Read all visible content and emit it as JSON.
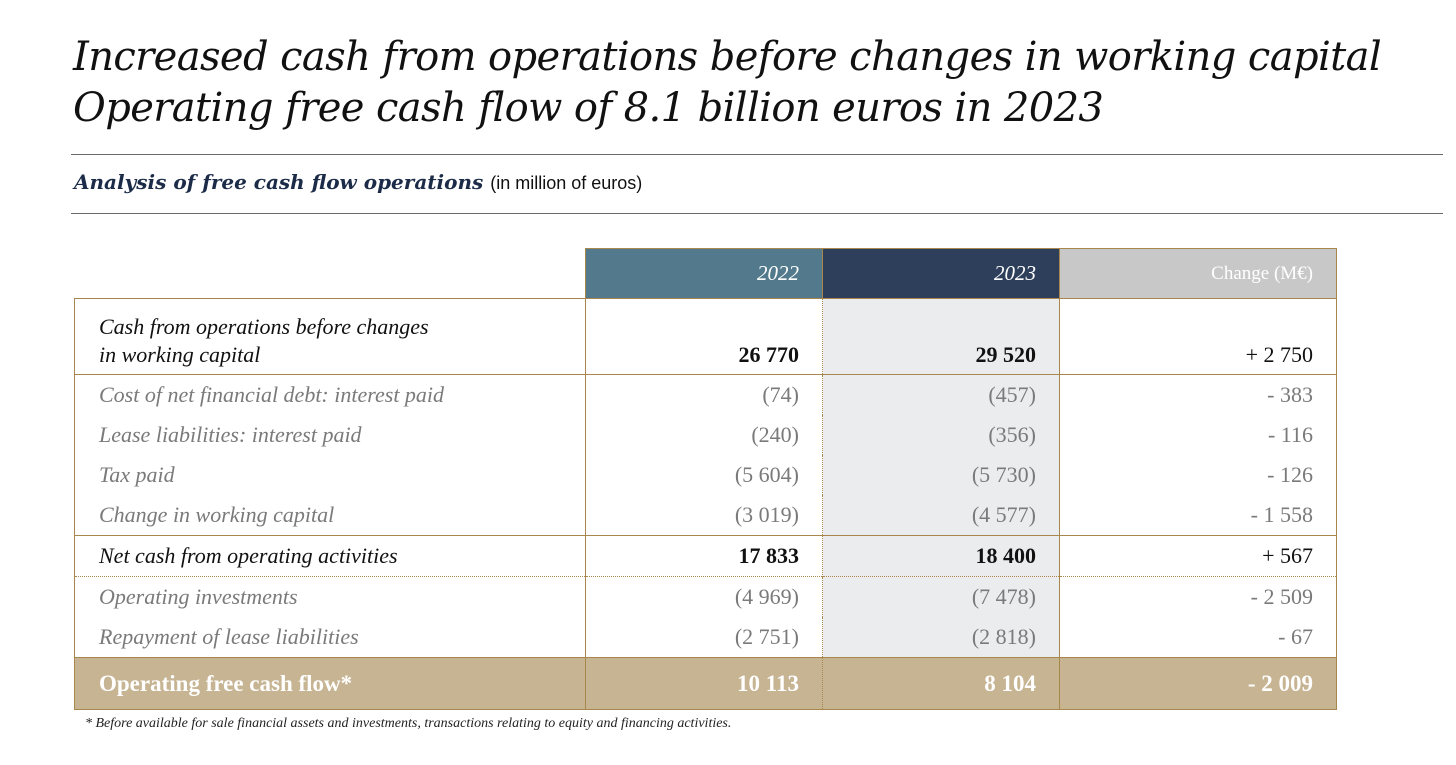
{
  "title": {
    "line1": "Increased cash from operations before changes in working capital",
    "line2": "Operating free cash flow of 8.1 billion euros in 2023"
  },
  "subtitle": {
    "main": "Analysis of free cash flow operations",
    "unit": "(in million of euros)"
  },
  "table": {
    "headers": {
      "col2022": "2022",
      "col2023": "2023",
      "change": "Change (M€)"
    },
    "rows": [
      {
        "label_line1": "Cash from operations before changes",
        "label_line2": "in working capital",
        "v2022": "26 770",
        "v2023": "29 520",
        "change": "+ 2 750"
      },
      {
        "label": "Cost of net financial debt: interest paid",
        "v2022": "(74)",
        "v2023": "(457)",
        "change": "- 383"
      },
      {
        "label": "Lease liabilities: interest paid",
        "v2022": "(240)",
        "v2023": "(356)",
        "change": "- 116"
      },
      {
        "label": "Tax paid",
        "v2022": "(5 604)",
        "v2023": "(5 730)",
        "change": "- 126"
      },
      {
        "label": "Change in working capital",
        "v2022": "(3 019)",
        "v2023": "(4 577)",
        "change": "- 1 558"
      },
      {
        "label": "Net cash from operating activities",
        "v2022": "17 833",
        "v2023": "18 400",
        "change": "+ 567"
      },
      {
        "label": "Operating investments",
        "v2022": "(4 969)",
        "v2023": "(7 478)",
        "change": "- 2 509"
      },
      {
        "label": "Repayment of lease liabilities",
        "v2022": "(2 751)",
        "v2023": "(2 818)",
        "change": "- 67"
      },
      {
        "label": "Operating free cash flow*",
        "v2022": "10 113",
        "v2023": "8 104",
        "change": "- 2 009"
      }
    ]
  },
  "footnote": "* Before available for sale financial assets and investments, transactions relating to equity and financing activities.",
  "colors": {
    "header_2022": "#527a8c",
    "header_2023": "#2d3f5b",
    "header_change": "#c8c8c8",
    "total_row": "#c6b493",
    "accent_border": "#a8874e",
    "column_2023_shade": "#ebecee"
  }
}
